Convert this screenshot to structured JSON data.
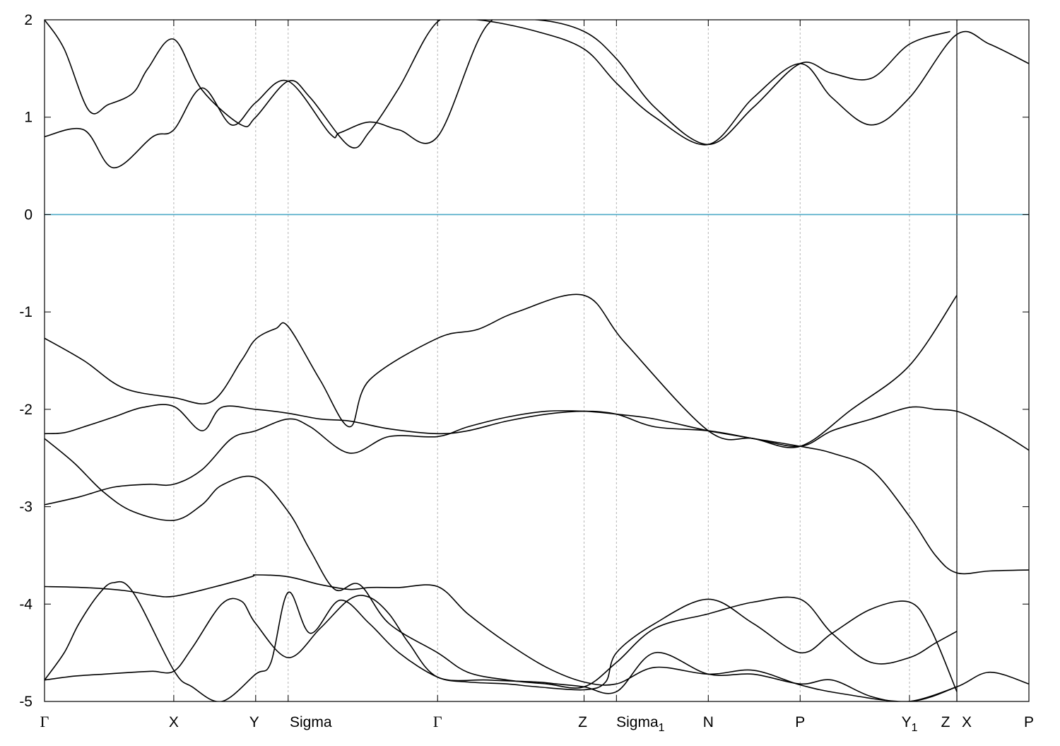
{
  "chart_data": {
    "type": "line",
    "title": "",
    "xlabel": "",
    "ylabel": "",
    "ylim": [
      -5,
      2
    ],
    "yticks": [
      -5,
      -4,
      -3,
      -2,
      -1,
      0,
      1,
      2
    ],
    "ytick_labels": [
      "-5",
      "-4",
      "-3",
      "-2",
      "-1",
      "0",
      "1",
      "2"
    ],
    "xlim": [
      0,
      1
    ],
    "high_symmetry_points": [
      {
        "label": "Γ",
        "x": 0.0,
        "greek": true
      },
      {
        "label": "X",
        "x": 0.1313
      },
      {
        "label": "Y",
        "x": 0.2145
      },
      {
        "label": "Sigma",
        "x": 0.2475
      },
      {
        "label": "Γ",
        "x": 0.3993,
        "greek": true
      },
      {
        "label": "Z",
        "x": 0.5481
      },
      {
        "label": "Sigma",
        "subscript": "1",
        "x": 0.581
      },
      {
        "label": "N",
        "x": 0.6743
      },
      {
        "label": "P",
        "x": 0.7676
      },
      {
        "label": "Y",
        "subscript": "1",
        "x": 0.8787
      },
      {
        "label": "Z",
        "x": 0.9268
      },
      {
        "label": "X",
        "x": 0.9268
      },
      {
        "label": "P",
        "x": 1.0
      }
    ],
    "fermi_level": {
      "y": 0,
      "color": "#4aa8c6"
    },
    "grid": "vertical dashed at high-symmetry points",
    "line_color": "#000000",
    "series": [
      {
        "x": [
          0.0,
          0.035,
          0.07,
          0.105,
          0.1313,
          0.16,
          0.19,
          0.2145,
          0.2475,
          0.27,
          0.31,
          0.35,
          0.3993,
          0.43,
          0.47,
          0.51,
          0.5481,
          0.581,
          0.62,
          0.6743,
          0.72,
          0.7676,
          0.8,
          0.84,
          0.8787,
          0.905,
          0.9268,
          0.95,
          0.975,
          1.0
        ],
        "y": [
          -2.98,
          -2.9,
          -2.8,
          -2.77,
          -2.77,
          -2.62,
          -2.3,
          -2.22,
          -2.1,
          -2.18,
          -2.45,
          -2.28,
          -2.28,
          -2.18,
          -2.08,
          -2.02,
          -2.02,
          -2.05,
          -2.1,
          -2.22,
          -2.3,
          -2.38,
          -2.22,
          -2.1,
          -1.98,
          -2.0,
          -2.02,
          -2.12,
          -2.26,
          -2.42
        ]
      },
      {
        "x": [
          0.0,
          0.02,
          0.04,
          0.07,
          0.1,
          0.1313,
          0.16,
          0.18,
          0.2145,
          0.2475,
          0.28,
          0.31,
          0.35,
          0.3993,
          0.43,
          0.47,
          0.51,
          0.5481,
          0.581,
          0.62,
          0.6743,
          0.72,
          0.7676,
          0.8,
          0.84,
          0.8787,
          0.905,
          0.9268,
          0.96,
          1.0
        ],
        "y": [
          -2.25,
          -2.24,
          -2.18,
          -2.08,
          -1.98,
          -1.97,
          -2.22,
          -1.98,
          -2.0,
          -2.04,
          -2.1,
          -2.12,
          -2.2,
          -2.25,
          -2.22,
          -2.12,
          -2.05,
          -2.02,
          -2.05,
          -2.18,
          -2.22,
          -2.3,
          -2.38,
          -2.45,
          -2.62,
          -3.1,
          -3.5,
          -3.68,
          -3.66,
          -3.65
        ]
      },
      {
        "x": [
          0.0,
          0.03,
          0.06,
          0.09,
          0.1313,
          0.16,
          0.18,
          0.2145,
          0.2475,
          0.27,
          0.295,
          0.32,
          0.35,
          0.3993,
          0.43,
          0.47,
          0.51,
          0.5481,
          0.581,
          0.62,
          0.6743,
          0.72,
          0.7676,
          0.8,
          0.84,
          0.8787,
          0.905,
          0.9268
        ],
        "y": [
          -2.3,
          -2.55,
          -2.85,
          -3.05,
          -3.14,
          -2.98,
          -2.78,
          -2.7,
          -3.05,
          -3.45,
          -3.85,
          -3.8,
          -4.2,
          -4.5,
          -4.7,
          -4.78,
          -4.82,
          -4.85,
          -4.6,
          -4.25,
          -4.1,
          -3.98,
          -3.95,
          -4.3,
          -4.6,
          -4.55,
          -4.4,
          -4.28
        ]
      },
      {
        "x": [
          0.0,
          0.04,
          0.08,
          0.1313,
          0.17,
          0.2,
          0.2145,
          0.235,
          0.2475,
          0.28,
          0.31,
          0.33,
          0.3993,
          0.44,
          0.48,
          0.5481,
          0.59,
          0.6743,
          0.72,
          0.7676,
          0.82,
          0.8787,
          0.9268
        ],
        "y": [
          -1.27,
          -1.5,
          -1.78,
          -1.88,
          -1.92,
          -1.5,
          -1.28,
          -1.17,
          -1.15,
          -1.7,
          -2.18,
          -1.7,
          -1.27,
          -1.18,
          -1.0,
          -0.83,
          -1.32,
          -2.22,
          -2.3,
          -2.38,
          -2.0,
          -1.55,
          -0.83
        ]
      },
      {
        "x": [
          0.0,
          0.04,
          0.08,
          0.11,
          0.1313,
          0.17,
          0.21,
          0.2145,
          0.2475,
          0.28,
          0.31,
          0.33,
          0.36,
          0.3993,
          0.43,
          0.47,
          0.51,
          0.5481,
          0.581,
          0.62,
          0.6743,
          0.72,
          0.7676,
          0.81,
          0.8787,
          0.9268
        ],
        "y": [
          -3.82,
          -3.83,
          -3.86,
          -3.91,
          -3.92,
          -3.83,
          -3.72,
          -3.7,
          -3.72,
          -3.8,
          -3.85,
          -3.83,
          -3.83,
          -3.82,
          -4.1,
          -4.4,
          -4.65,
          -4.8,
          -4.82,
          -4.65,
          -4.72,
          -4.68,
          -4.83,
          -4.92,
          -5.0,
          -4.85
        ]
      },
      {
        "x": [
          0.0,
          0.02,
          0.035,
          0.055,
          0.07,
          0.09,
          0.1313,
          0.15,
          0.18,
          0.2145,
          0.23,
          0.2475,
          0.27,
          0.3,
          0.33,
          0.36,
          0.3993,
          0.43,
          0.47,
          0.5,
          0.5481,
          0.57,
          0.581,
          0.62,
          0.6743,
          0.72,
          0.7676,
          0.8,
          0.84,
          0.8787,
          0.9,
          0.9268
        ],
        "y": [
          -4.78,
          -4.5,
          -4.2,
          -3.9,
          -3.78,
          -3.88,
          -4.68,
          -4.85,
          -5.0,
          -4.72,
          -4.6,
          -3.88,
          -4.3,
          -3.96,
          -4.2,
          -4.5,
          -4.75,
          -4.8,
          -4.82,
          -4.85,
          -4.88,
          -4.8,
          -4.5,
          -4.2,
          -3.95,
          -4.2,
          -4.5,
          -4.3,
          -4.05,
          -3.98,
          -4.25,
          -4.9
        ]
      },
      {
        "x": [
          0.0,
          0.04,
          0.07,
          0.11,
          0.1313,
          0.16,
          0.19,
          0.2145,
          0.2475,
          0.29,
          0.3,
          0.33,
          0.36,
          0.3993,
          0.45,
          0.5,
          0.5481,
          0.581,
          0.62,
          0.6743,
          0.72,
          0.7676,
          0.8,
          0.84,
          0.8787,
          0.92
        ],
        "y": [
          0.8,
          0.87,
          0.48,
          0.8,
          0.87,
          1.3,
          0.92,
          1.15,
          1.37,
          0.83,
          0.84,
          0.95,
          0.87,
          0.8,
          1.95,
          2.0,
          1.88,
          1.6,
          1.1,
          0.72,
          1.1,
          1.55,
          1.45,
          1.4,
          1.75,
          1.88
        ]
      },
      {
        "x": [
          0.0,
          0.02,
          0.045,
          0.065,
          0.09,
          0.105,
          0.1313,
          0.16,
          0.2,
          0.2145,
          0.2475,
          0.27,
          0.31,
          0.33,
          0.36,
          0.3993,
          0.44,
          0.5,
          0.5481,
          0.581,
          0.62,
          0.6743,
          0.72,
          0.7676,
          0.8,
          0.84,
          0.8787,
          0.9268,
          0.96,
          1.0
        ],
        "y": [
          2.0,
          1.7,
          1.07,
          1.13,
          1.25,
          1.5,
          1.8,
          1.28,
          0.92,
          1.0,
          1.37,
          1.2,
          0.7,
          0.85,
          1.3,
          1.98,
          2.0,
          1.88,
          1.7,
          1.35,
          1.0,
          0.72,
          1.2,
          1.55,
          1.2,
          0.92,
          1.2,
          1.85,
          1.75,
          1.55
        ]
      },
      {
        "x": [
          0.0,
          0.03,
          0.06,
          0.09,
          0.11,
          0.1313,
          0.15,
          0.18,
          0.2,
          0.2145,
          0.2475,
          0.28,
          0.31,
          0.33,
          0.35,
          0.37,
          0.3993,
          0.45,
          0.5,
          0.52,
          0.5481,
          0.581,
          0.62,
          0.6743,
          0.72,
          0.7676,
          0.8,
          0.84,
          0.8787,
          0.9268,
          0.96,
          1.0
        ],
        "y": [
          -4.78,
          -4.74,
          -4.72,
          -4.7,
          -4.69,
          -4.69,
          -4.45,
          -4.0,
          -3.97,
          -4.2,
          -4.55,
          -4.25,
          -3.95,
          -3.93,
          -4.1,
          -4.4,
          -4.75,
          -4.78,
          -4.8,
          -4.82,
          -4.85,
          -4.9,
          -4.5,
          -4.72,
          -4.72,
          -4.82,
          -4.78,
          -4.95,
          -5.0,
          -4.85,
          -4.7,
          -4.82
        ]
      }
    ]
  }
}
